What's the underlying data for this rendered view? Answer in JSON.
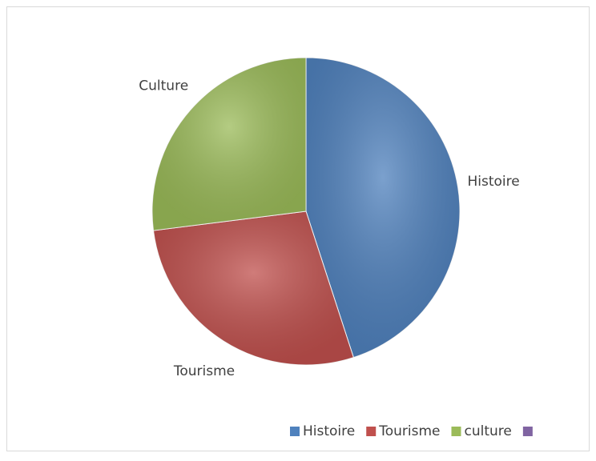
{
  "chart_data": {
    "type": "pie",
    "categories": [
      "Histoire",
      "Tourisme",
      "culture",
      null
    ],
    "data_labels": [
      "Histoire",
      "Tourisme",
      "Culture",
      null
    ],
    "values": [
      45,
      28,
      27,
      null
    ],
    "colors": [
      "#4f81bd",
      "#c0504d",
      "#9bbb59",
      "#8064a2"
    ],
    "legend": "bottom"
  }
}
